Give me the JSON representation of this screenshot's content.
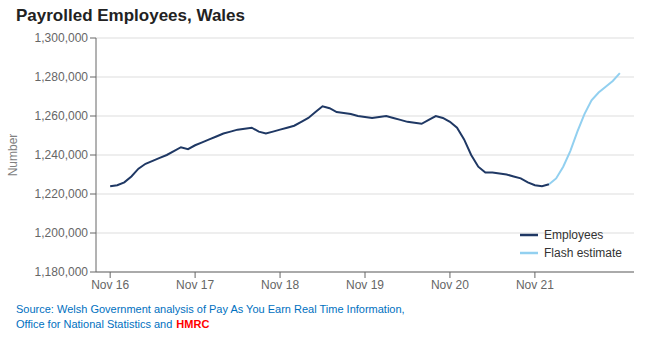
{
  "chart_data": {
    "type": "line",
    "title": "Payrolled Employees, Wales",
    "y_label": "Number",
    "xlim": [
      -2,
      74
    ],
    "xticks": [
      {
        "value": 0,
        "label": "Nov 16"
      },
      {
        "value": 12,
        "label": "Nov 17"
      },
      {
        "value": 24,
        "label": "Nov 18"
      },
      {
        "value": 36,
        "label": "Nov 19"
      },
      {
        "value": 48,
        "label": "Nov 20"
      },
      {
        "value": 60,
        "label": "Nov 21"
      }
    ],
    "ylim": [
      1180000,
      1300000
    ],
    "yticks": [
      {
        "value": 1180000,
        "label": "1,180,000"
      },
      {
        "value": 1200000,
        "label": "1,200,000"
      },
      {
        "value": 1220000,
        "label": "1,220,000"
      },
      {
        "value": 1240000,
        "label": "1,240,000"
      },
      {
        "value": 1260000,
        "label": "1,260,000"
      },
      {
        "value": 1280000,
        "label": "1,280,000"
      },
      {
        "value": 1300000,
        "label": "1,300,000"
      }
    ],
    "grid": true,
    "legend": "lower right",
    "series": [
      {
        "name": "Employees",
        "color": "#1f3864",
        "x": [
          0,
          1,
          2,
          3,
          4,
          5,
          6,
          7,
          8,
          9,
          10,
          11,
          12,
          13,
          14,
          15,
          16,
          17,
          18,
          19,
          20,
          21,
          22,
          23,
          24,
          25,
          26,
          27,
          28,
          29,
          30,
          31,
          32,
          33,
          34,
          35,
          36,
          37,
          38,
          39,
          40,
          41,
          42,
          43,
          44,
          45,
          46,
          47,
          48,
          49,
          50,
          51,
          52,
          53,
          54,
          55,
          56,
          57,
          58,
          59,
          60,
          61,
          62
        ],
        "values": [
          1224000,
          1224500,
          1226000,
          1229000,
          1233000,
          1235500,
          1237000,
          1238500,
          1240000,
          1242000,
          1244000,
          1243000,
          1245000,
          1246500,
          1248000,
          1249500,
          1251000,
          1252000,
          1253000,
          1253500,
          1254000,
          1252000,
          1251000,
          1252000,
          1253000,
          1254000,
          1255000,
          1257000,
          1259000,
          1262000,
          1265000,
          1264000,
          1262000,
          1261500,
          1261000,
          1260000,
          1259500,
          1259000,
          1259500,
          1260000,
          1259000,
          1258000,
          1257000,
          1256500,
          1256000,
          1258000,
          1260000,
          1259000,
          1257000,
          1254000,
          1248000,
          1240000,
          1234000,
          1231000,
          1231000,
          1230500,
          1230000,
          1229000,
          1228000,
          1226000,
          1224500,
          1224000,
          1225000
        ]
      },
      {
        "name": "Flash estimate",
        "color": "#92d0f0",
        "x": [
          62,
          63,
          64,
          65,
          66,
          67,
          68,
          69,
          70,
          71,
          72
        ],
        "values": [
          1225000,
          1228000,
          1234000,
          1242000,
          1252000,
          1261000,
          1268000,
          1272000,
          1275000,
          1278000,
          1282000
        ]
      }
    ],
    "annotations": [
      {
        "text": "Source: Welsh Government analysis of Pay As You Earn Real Time Information,",
        "color": "#0070c0"
      },
      {
        "text": "Office for National Statistics and",
        "color": "#0070c0"
      },
      {
        "text": "HMRC",
        "color": "#ff0000"
      }
    ]
  }
}
